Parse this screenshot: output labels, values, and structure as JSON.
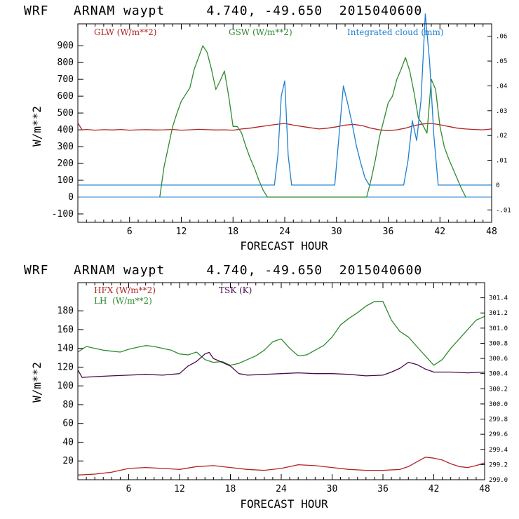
{
  "chart_data": [
    {
      "type": "line",
      "title": "WRF   ARNAM waypt     4.740, -49.650  2015040600",
      "xlabel": "FORECAST HOUR",
      "ylabel": "W/m**2",
      "xlim": [
        0,
        48
      ],
      "ylim": [
        -150,
        1030
      ],
      "xticks": [
        6,
        12,
        18,
        24,
        30,
        36,
        42,
        48
      ],
      "yticks": [
        -100,
        0,
        100,
        200,
        300,
        400,
        500,
        600,
        700,
        800,
        900
      ],
      "right_axis": {
        "ylim": [
          -0.015,
          0.065
        ],
        "ticks": [
          -0.01,
          0,
          0.01,
          0.02,
          0.03,
          0.04,
          0.05,
          0.06
        ],
        "tick_labels": [
          "-.01",
          "0",
          ".01",
          ".02",
          ".03",
          ".04",
          ".05",
          ".06"
        ]
      },
      "series": [
        {
          "name": "GLW (W/m**2)",
          "color": "#b22222",
          "axis": "left",
          "x": [
            0,
            0.5,
            1,
            2,
            3,
            4,
            5,
            6,
            7,
            8,
            9,
            10,
            11,
            12,
            13,
            14,
            15,
            16,
            17,
            18,
            19,
            20,
            21,
            22,
            23,
            24,
            25,
            26,
            27,
            28,
            29,
            30,
            31,
            32,
            33,
            34,
            35,
            36,
            37,
            38,
            39,
            40,
            41,
            42,
            43,
            44,
            45,
            46,
            47,
            48
          ],
          "y": [
            440,
            400,
            402,
            398,
            401,
            399,
            402,
            398,
            400,
            401,
            399,
            400,
            402,
            398,
            400,
            403,
            401,
            399,
            400,
            398,
            405,
            410,
            418,
            425,
            432,
            438,
            428,
            420,
            412,
            405,
            410,
            418,
            428,
            432,
            425,
            410,
            400,
            395,
            400,
            410,
            425,
            435,
            438,
            430,
            420,
            410,
            405,
            402,
            400,
            405
          ]
        },
        {
          "name": "GSW (W/m**2)",
          "color": "#2e8b2e",
          "axis": "left",
          "x": [
            9.5,
            10,
            10.5,
            11,
            11.5,
            12,
            12.5,
            13,
            13.5,
            14,
            14.5,
            15,
            15.5,
            16,
            16.5,
            17,
            17.5,
            18,
            18.5,
            19,
            19.5,
            20,
            20.5,
            21,
            21.5,
            22,
            33.5,
            34,
            34.5,
            35,
            35.5,
            36,
            36.5,
            37,
            37.5,
            38,
            38.5,
            39,
            39.5,
            40,
            40.5,
            41,
            41.5,
            42,
            42.5,
            43,
            43.5,
            44,
            44.5,
            45
          ],
          "y": [
            0,
            180,
            300,
            420,
            500,
            570,
            610,
            650,
            760,
            830,
            900,
            860,
            760,
            640,
            690,
            750,
            600,
            420,
            420,
            380,
            300,
            230,
            170,
            100,
            40,
            0,
            0,
            100,
            220,
            360,
            460,
            560,
            600,
            700,
            760,
            830,
            750,
            620,
            470,
            430,
            380,
            700,
            640,
            420,
            300,
            230,
            170,
            110,
            50,
            0
          ]
        },
        {
          "name": "Integrated cloud (mm)",
          "color": "#1e7fd0",
          "axis": "right",
          "x": [
            0,
            22.8,
            23.2,
            23.6,
            24,
            24.4,
            24.8,
            29.8,
            30.3,
            30.8,
            31.3,
            31.8,
            32.3,
            32.8,
            33.3,
            33.8,
            37.8,
            38.3,
            38.8,
            39.3,
            39.8,
            40.3,
            40.8,
            41.3,
            41.8,
            48
          ],
          "y": [
            0,
            0,
            0.012,
            0.036,
            0.042,
            0.012,
            0,
            0,
            0.02,
            0.04,
            0.033,
            0.025,
            0.016,
            0.009,
            0.003,
            0,
            0,
            0.01,
            0.026,
            0.018,
            0.034,
            0.069,
            0.05,
            0.02,
            0,
            0
          ]
        }
      ]
    },
    {
      "type": "line",
      "title": "WRF   ARNAM waypt     4.740, -49.650  2015040600",
      "xlabel": "FORECAST HOUR",
      "ylabel": "W/m**2",
      "xlim": [
        0,
        48
      ],
      "ylim": [
        0,
        210
      ],
      "xticks": [
        6,
        12,
        18,
        24,
        30,
        36,
        42,
        48
      ],
      "yticks": [
        20,
        40,
        60,
        80,
        100,
        120,
        140,
        160,
        180
      ],
      "right_axis": {
        "ylim": [
          299.0,
          301.6
        ],
        "ticks": [
          299.0,
          299.2,
          299.4,
          299.6,
          299.8,
          300.0,
          300.2,
          300.4,
          300.6,
          300.8,
          301.0,
          301.2,
          301.4
        ],
        "tick_labels": [
          "299.0",
          "299.2",
          "299.4",
          "299.6",
          "299.8",
          "300.0",
          "300.2",
          "300.4",
          "300.6",
          "300.8",
          "301.0",
          "301.2",
          "301.4"
        ]
      },
      "series": [
        {
          "name": "HFX (W/m**2)",
          "color": "#b22222",
          "axis": "left",
          "x": [
            0,
            2,
            4,
            6,
            8,
            10,
            12,
            14,
            16,
            18,
            20,
            22,
            24,
            26,
            28,
            30,
            32,
            34,
            36,
            38,
            39,
            40,
            41,
            42,
            43,
            44,
            45,
            46,
            47,
            48
          ],
          "y": [
            5,
            6,
            8,
            12,
            13,
            12,
            11,
            14,
            15,
            13,
            11,
            10,
            12,
            16,
            15,
            13,
            11,
            10,
            10,
            11,
            14,
            19,
            24,
            23,
            21,
            17,
            14,
            13,
            15,
            18
          ]
        },
        {
          "name": "LH  (W/m**2)",
          "color": "#2e8b2e",
          "axis": "left",
          "x": [
            0,
            1,
            2,
            3,
            4,
            5,
            6,
            7,
            8,
            9,
            10,
            11,
            12,
            13,
            14,
            15,
            16,
            17,
            18,
            19,
            20,
            21,
            22,
            23,
            24,
            25,
            26,
            27,
            28,
            29,
            30,
            31,
            32,
            33,
            34,
            35,
            36,
            37,
            38,
            39,
            40,
            41,
            42,
            43,
            44,
            45,
            46,
            47,
            48
          ],
          "y": [
            136,
            142,
            140,
            138,
            137,
            136,
            139,
            141,
            143,
            142,
            140,
            138,
            134,
            133,
            136,
            128,
            125,
            126,
            122,
            124,
            128,
            132,
            138,
            147,
            150,
            140,
            132,
            133,
            138,
            143,
            152,
            165,
            172,
            178,
            185,
            190,
            190,
            170,
            158,
            152,
            142,
            132,
            122,
            128,
            140,
            150,
            160,
            170,
            174
          ]
        },
        {
          "name": "TSK (K)",
          "color": "#4b0a4b",
          "axis": "right",
          "x": [
            0,
            0.5,
            2,
            4,
            6,
            8,
            10,
            12,
            13,
            14,
            15,
            15.5,
            16,
            17,
            18,
            19,
            20,
            22,
            24,
            26,
            28,
            30,
            32,
            34,
            36,
            37,
            38,
            39,
            40,
            41,
            42,
            44,
            46,
            48
          ],
          "y": [
            300.45,
            300.35,
            300.36,
            300.37,
            300.38,
            300.39,
            300.38,
            300.4,
            300.5,
            300.56,
            300.66,
            300.68,
            300.6,
            300.55,
            300.5,
            300.4,
            300.38,
            300.39,
            300.4,
            300.41,
            300.4,
            300.4,
            300.39,
            300.37,
            300.38,
            300.42,
            300.47,
            300.55,
            300.52,
            300.46,
            300.42,
            300.42,
            300.41,
            300.42
          ]
        }
      ]
    }
  ]
}
